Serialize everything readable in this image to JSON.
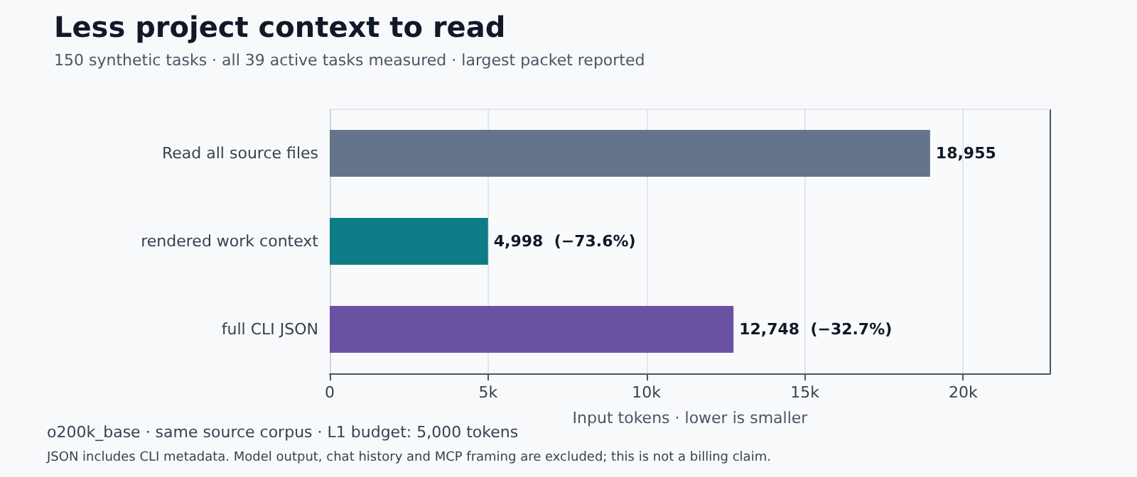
{
  "chart_data": {
    "type": "bar",
    "orientation": "horizontal",
    "title": "Less project context to read",
    "subtitle": "150 synthetic tasks · all 39 active tasks measured · largest packet reported",
    "categories": [
      "Read all source files",
      "rendered work context",
      "full CLI JSON"
    ],
    "values": [
      18955,
      4998,
      12748
    ],
    "colors": [
      "#64748b",
      "#0e7c86",
      "#6a52a3"
    ],
    "value_labels": [
      "18,955",
      "4,998  (−73.6%)",
      "12,748  (−32.7%)"
    ],
    "xlabel": "Input tokens · lower is smaller",
    "xlim": [
      0,
      22750
    ],
    "xticks": [
      {
        "value": 0,
        "label": "0"
      },
      {
        "value": 5000,
        "label": "5k"
      },
      {
        "value": 10000,
        "label": "10k"
      },
      {
        "value": 15000,
        "label": "15k"
      },
      {
        "value": 20000,
        "label": "20k"
      }
    ],
    "grid": "x",
    "annotations": [
      "o200k_base · same source corpus · L1 budget: 5,000 tokens",
      "JSON includes CLI metadata. Model output, chat history and MCP framing are excluded; this is not a billing claim."
    ]
  }
}
